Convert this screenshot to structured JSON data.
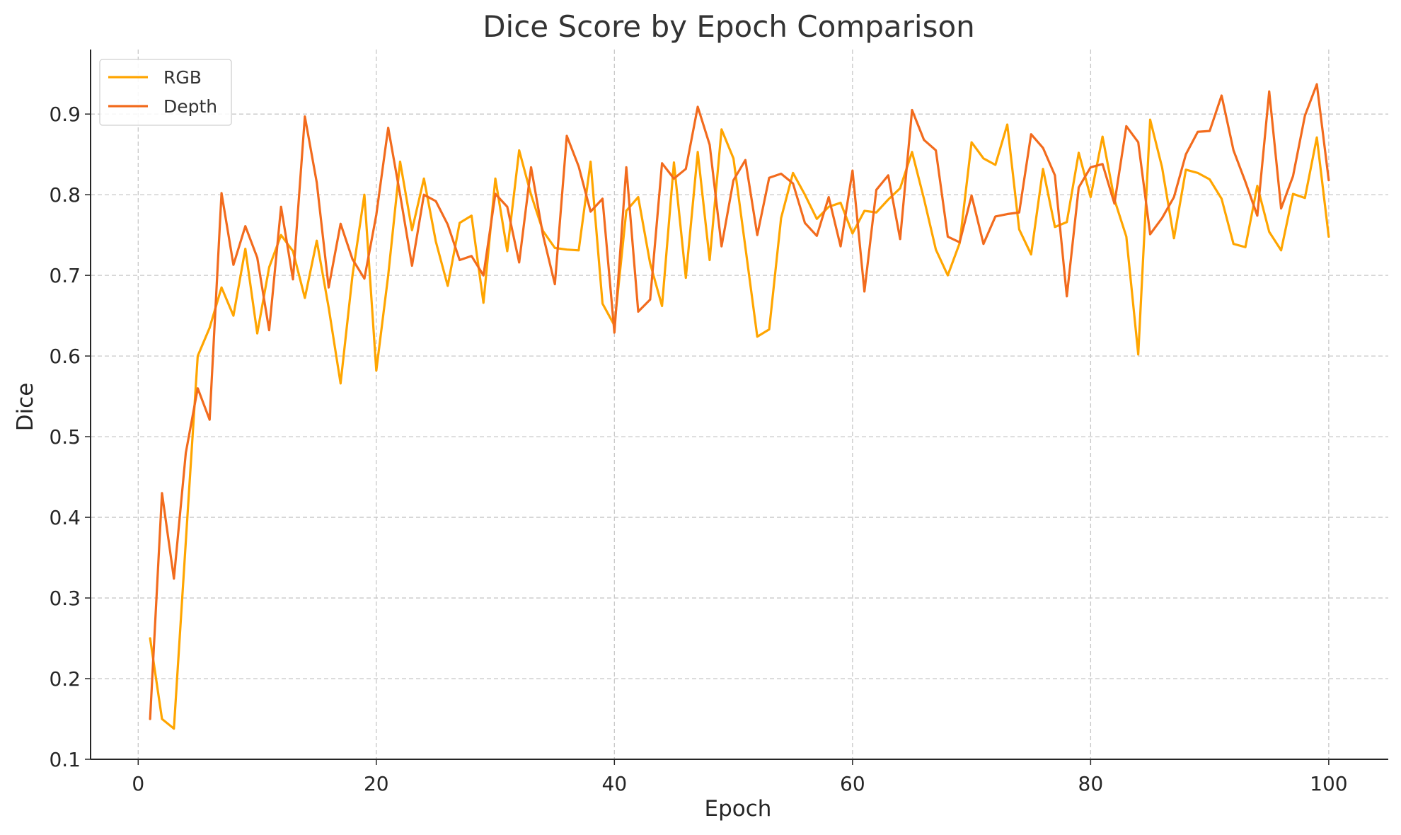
{
  "chart_data": {
    "type": "line",
    "title": "Dice Score by Epoch Comparison",
    "xlabel": "Epoch",
    "ylabel": "Dice",
    "xlim": [
      -4,
      105
    ],
    "ylim": [
      0.1,
      0.98
    ],
    "xticks": [
      0,
      20,
      40,
      60,
      80,
      100
    ],
    "yticks": [
      0.1,
      0.2,
      0.3,
      0.4,
      0.5,
      0.6,
      0.7,
      0.8,
      0.9
    ],
    "grid": true,
    "legend_position": "top-left",
    "x": [
      1,
      2,
      3,
      4,
      5,
      6,
      7,
      8,
      9,
      10,
      11,
      12,
      13,
      14,
      15,
      16,
      17,
      18,
      19,
      20,
      21,
      22,
      23,
      24,
      25,
      26,
      27,
      28,
      29,
      30,
      31,
      32,
      33,
      34,
      35,
      36,
      37,
      38,
      39,
      40,
      41,
      42,
      43,
      44,
      45,
      46,
      47,
      48,
      49,
      50,
      51,
      52,
      53,
      54,
      55,
      56,
      57,
      58,
      59,
      60,
      61,
      62,
      63,
      64,
      65,
      66,
      67,
      68,
      69,
      70,
      71,
      72,
      73,
      74,
      75,
      76,
      77,
      78,
      79,
      80,
      81,
      82,
      83,
      84,
      85,
      86,
      87,
      88,
      89,
      90,
      91,
      92,
      93,
      94,
      95,
      96,
      97,
      98,
      99,
      100
    ],
    "series": [
      {
        "name": "RGB",
        "color": "#FFA500",
        "values": [
          0.25,
          0.15,
          0.138,
          0.37,
          0.6,
          0.635,
          0.685,
          0.65,
          0.733,
          0.628,
          0.71,
          0.75,
          0.73,
          0.672,
          0.743,
          0.66,
          0.566,
          0.7,
          0.8,
          0.582,
          0.7,
          0.841,
          0.756,
          0.82,
          0.742,
          0.687,
          0.765,
          0.774,
          0.666,
          0.82,
          0.73,
          0.855,
          0.8,
          0.755,
          0.734,
          0.732,
          0.731,
          0.841,
          0.665,
          0.638,
          0.78,
          0.797,
          0.715,
          0.662,
          0.84,
          0.697,
          0.853,
          0.719,
          0.881,
          0.845,
          0.735,
          0.624,
          0.633,
          0.771,
          0.827,
          0.8,
          0.77,
          0.785,
          0.79,
          0.752,
          0.78,
          0.778,
          0.794,
          0.808,
          0.853,
          0.795,
          0.732,
          0.7,
          0.74,
          0.865,
          0.845,
          0.837,
          0.887,
          0.757,
          0.726,
          0.832,
          0.76,
          0.766,
          0.852,
          0.797,
          0.872,
          0.794,
          0.748,
          0.602,
          0.893,
          0.834,
          0.746,
          0.831,
          0.827,
          0.819,
          0.795,
          0.739,
          0.735,
          0.811,
          0.754,
          0.731,
          0.801,
          0.796,
          0.871,
          0.748
        ]
      },
      {
        "name": "Depth",
        "color": "#F26B1D",
        "values": [
          0.15,
          0.43,
          0.324,
          0.48,
          0.56,
          0.521,
          0.802,
          0.713,
          0.761,
          0.722,
          0.632,
          0.785,
          0.695,
          0.897,
          0.815,
          0.685,
          0.764,
          0.72,
          0.696,
          0.775,
          0.883,
          0.8,
          0.712,
          0.8,
          0.792,
          0.763,
          0.719,
          0.724,
          0.7,
          0.801,
          0.785,
          0.716,
          0.834,
          0.75,
          0.689,
          0.873,
          0.835,
          0.779,
          0.795,
          0.629,
          0.834,
          0.655,
          0.67,
          0.839,
          0.82,
          0.832,
          0.909,
          0.862,
          0.736,
          0.818,
          0.843,
          0.75,
          0.821,
          0.826,
          0.814,
          0.765,
          0.749,
          0.797,
          0.736,
          0.83,
          0.68,
          0.806,
          0.824,
          0.745,
          0.905,
          0.868,
          0.855,
          0.748,
          0.741,
          0.799,
          0.739,
          0.773,
          0.776,
          0.778,
          0.875,
          0.858,
          0.824,
          0.674,
          0.809,
          0.834,
          0.838,
          0.789,
          0.885,
          0.865,
          0.751,
          0.771,
          0.797,
          0.85,
          0.878,
          0.879,
          0.923,
          0.855,
          0.816,
          0.774,
          0.928,
          0.783,
          0.823,
          0.898,
          0.937,
          0.818
        ]
      }
    ]
  }
}
